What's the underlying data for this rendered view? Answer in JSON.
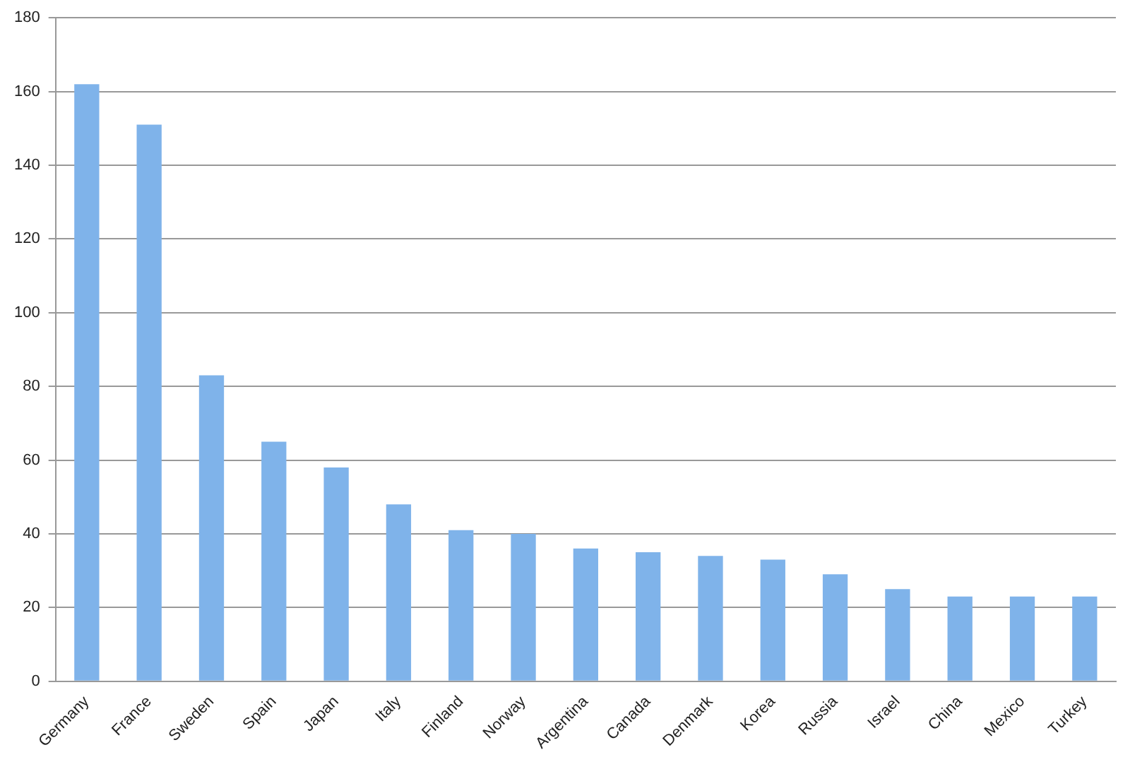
{
  "chart_data": {
    "type": "bar",
    "categories": [
      "Germany",
      "France",
      "Sweden",
      "Spain",
      "Japan",
      "Italy",
      "Finland",
      "Norway",
      "Argentina",
      "Canada",
      "Denmark",
      "Korea",
      "Russia",
      "Israel",
      "China",
      "Mexico",
      "Turkey"
    ],
    "values": [
      162,
      151,
      83,
      65,
      58,
      48,
      41,
      40,
      36,
      35,
      34,
      33,
      29,
      25,
      23,
      23,
      23
    ],
    "color": "#7fb3ea",
    "ylim": [
      0,
      180
    ],
    "yticks": [
      0,
      20,
      40,
      60,
      80,
      100,
      120,
      140,
      160,
      180
    ],
    "grid": "y",
    "legend": false
  }
}
